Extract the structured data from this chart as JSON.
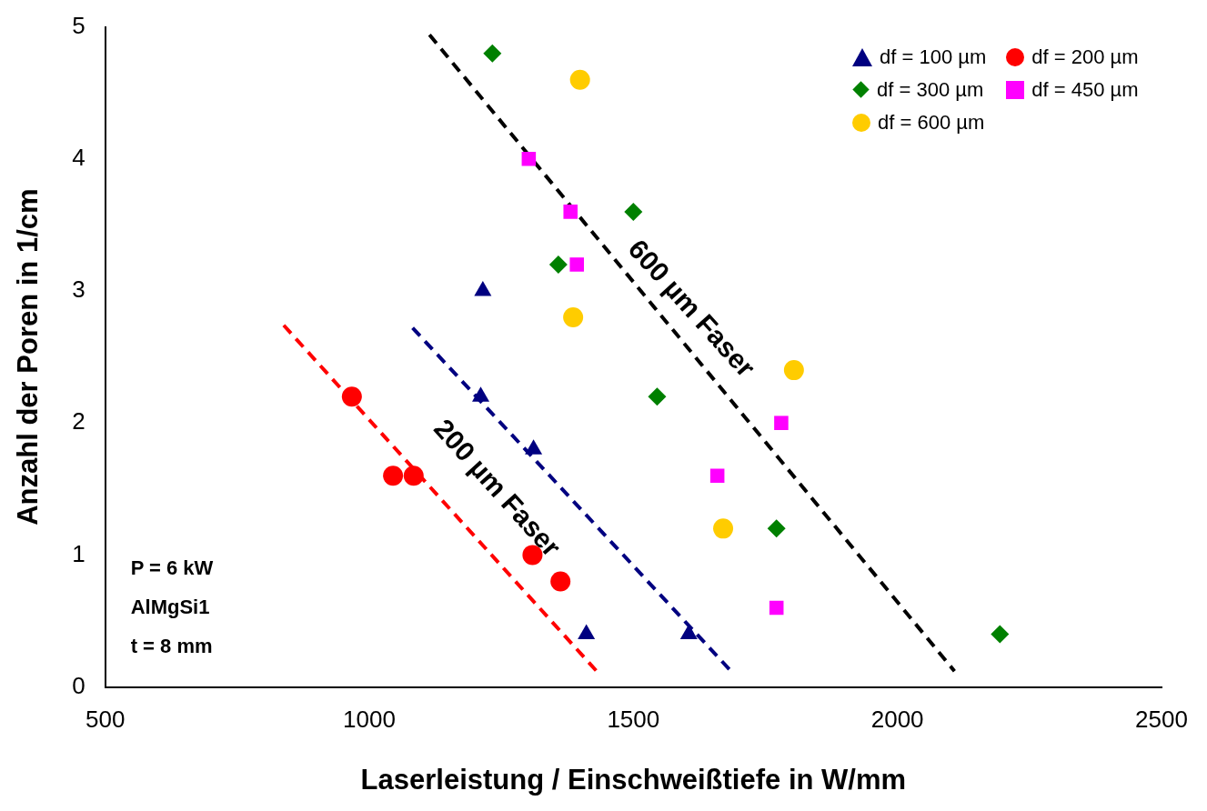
{
  "chart_data": {
    "type": "scatter",
    "xlabel": "Laserleistung / Einschweißtiefe in W/mm",
    "ylabel": "Anzahl der Poren in 1/cm",
    "xlim": [
      500,
      2500
    ],
    "xticks": [
      500,
      1000,
      1500,
      2000,
      2500
    ],
    "ylim": [
      0,
      5
    ],
    "yticks": [
      0,
      1,
      2,
      3,
      4,
      5
    ],
    "grid": false,
    "legend": "top right",
    "series": [
      {
        "name": "df = 100 µm",
        "color": "#000080",
        "marker": "triangle",
        "x": [
          1215,
          1211,
          1311,
          1411,
          1605
        ],
        "values": [
          3.0,
          2.2,
          1.8,
          0.4,
          0.4
        ]
      },
      {
        "name": "df = 200 µm",
        "color": "#ff0000",
        "marker": "circle",
        "x": [
          967,
          1045,
          1084,
          1309,
          1362
        ],
        "values": [
          2.2,
          1.6,
          1.6,
          1.0,
          0.8
        ]
      },
      {
        "name": "df = 300 µm",
        "color": "#008000",
        "marker": "diamond",
        "x": [
          1233,
          1358,
          1500,
          1545,
          1771,
          2194
        ],
        "values": [
          4.8,
          3.2,
          3.6,
          2.2,
          1.2,
          0.4
        ]
      },
      {
        "name": "df = 450 µm",
        "color": "#ff00ff",
        "marker": "square",
        "x": [
          1302,
          1381,
          1393,
          1780,
          1659,
          1771
        ],
        "values": [
          4.0,
          3.6,
          3.2,
          2.0,
          1.6,
          0.6
        ]
      },
      {
        "name": "df = 600 µm",
        "color": "#ffcc00",
        "marker": "circle",
        "x": [
          1399,
          1386,
          1804,
          1670
        ],
        "values": [
          4.6,
          2.8,
          2.4,
          1.2
        ]
      },
      {
        "type": "line",
        "color": "#ff0000",
        "line_style": "dashed",
        "marker": "none",
        "x": [
          838,
          1435
        ],
        "values": [
          2.74,
          0.1
        ]
      },
      {
        "type": "line",
        "color": "#000080",
        "line_style": "dashed",
        "marker": "none",
        "x": [
          1082,
          1685
        ],
        "values": [
          2.72,
          0.12
        ]
      },
      {
        "type": "line",
        "color": "#000000",
        "line_style": "dashed",
        "marker": "none",
        "x": [
          1114,
          2108
        ],
        "values": [
          4.94,
          0.12
        ]
      }
    ],
    "annotations": [
      "200 µm Faser",
      "600 µm Faser",
      "P = 6 kW",
      "AlMgSi1",
      "t = 8 mm"
    ]
  }
}
